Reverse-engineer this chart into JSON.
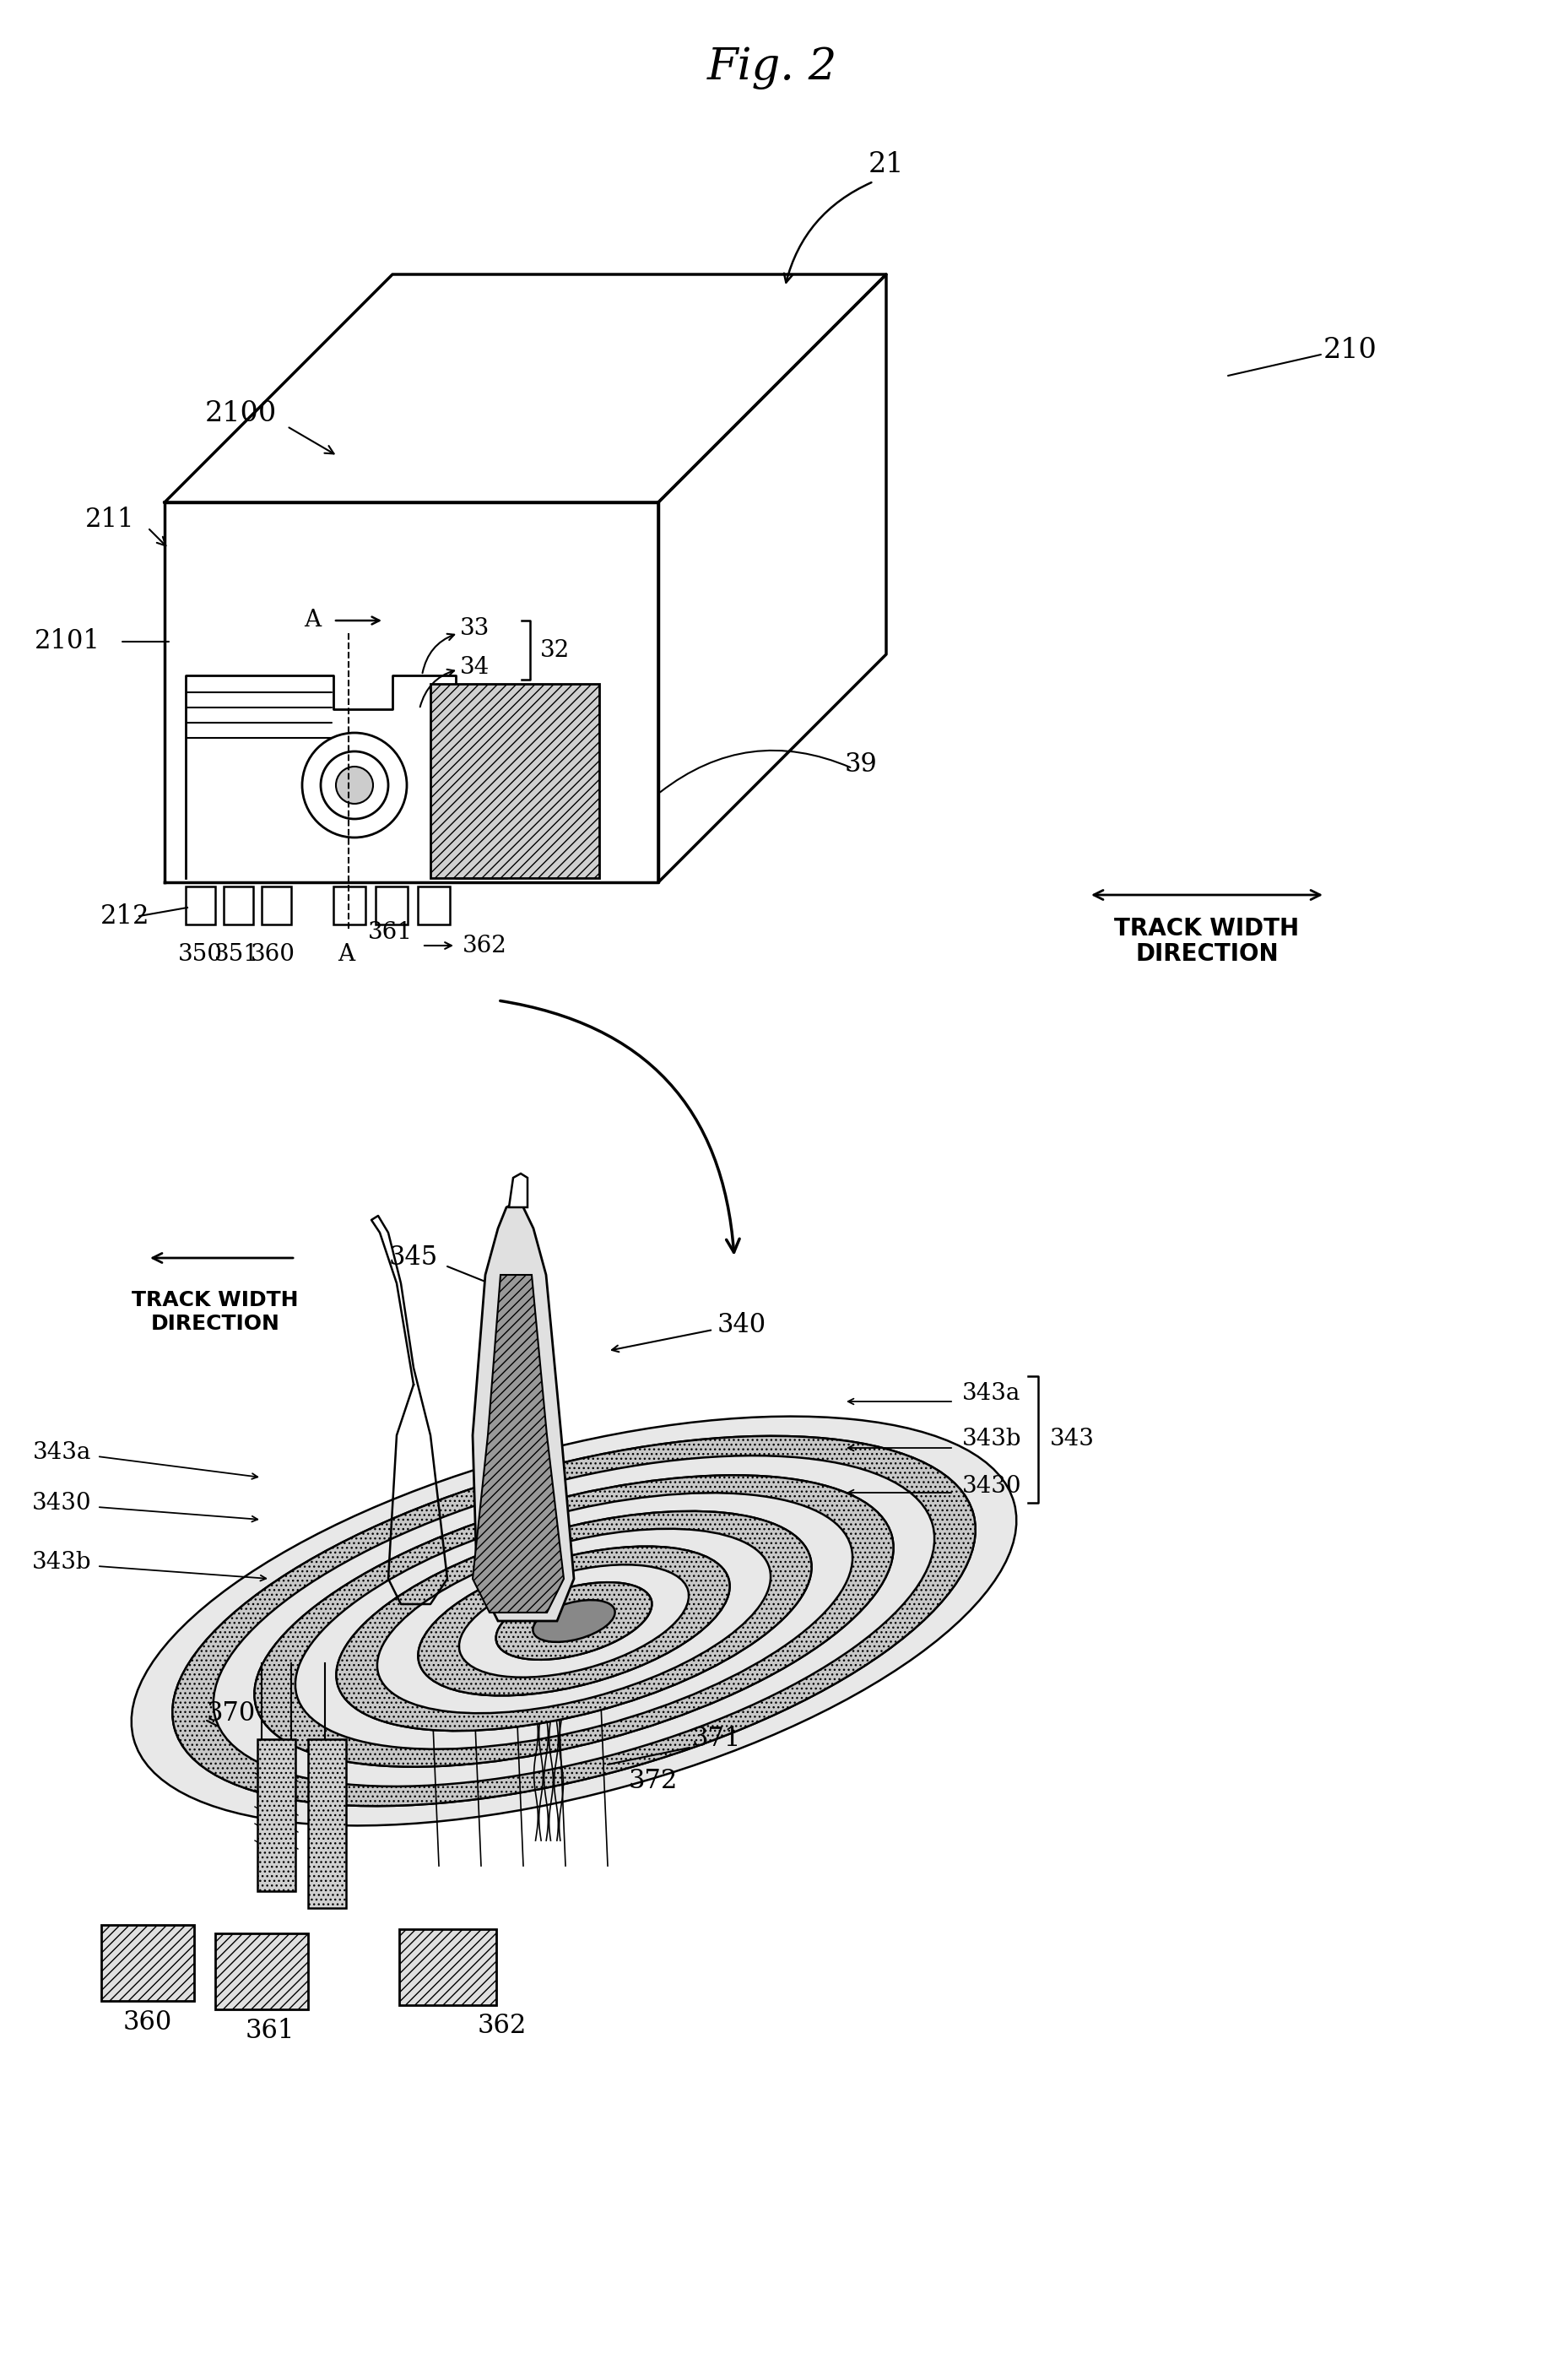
{
  "bg_color": "#ffffff",
  "fig_w": 1827,
  "fig_h": 2819,
  "labels": {
    "fig_title": "Fig. 2",
    "n21": "21",
    "n210": "210",
    "n2100": "2100",
    "n211": "211",
    "n2101": "2101",
    "n212": "212",
    "n32": "32",
    "n33": "33",
    "n34": "34",
    "n39": "39",
    "n350": "350",
    "n351": "351",
    "n360_top": "360",
    "nA_top": "A",
    "n361_top": "361",
    "n362_top": "362",
    "track_width_top": "TRACK WIDTH\nDIRECTION",
    "n345": "345",
    "n340": "340",
    "n343a_r": "343a",
    "n343b_r": "343b",
    "n343_r": "343",
    "n3430_r": "3430",
    "n343a_l": "343a",
    "n3430_l": "3430",
    "n343b_l": "343b",
    "n370": "370",
    "n371": "371",
    "n372": "372",
    "n360_b": "360",
    "n361_b": "361",
    "n362_b": "362",
    "track_width_bottom": "TRACK WIDTH\nDIRECTION"
  }
}
